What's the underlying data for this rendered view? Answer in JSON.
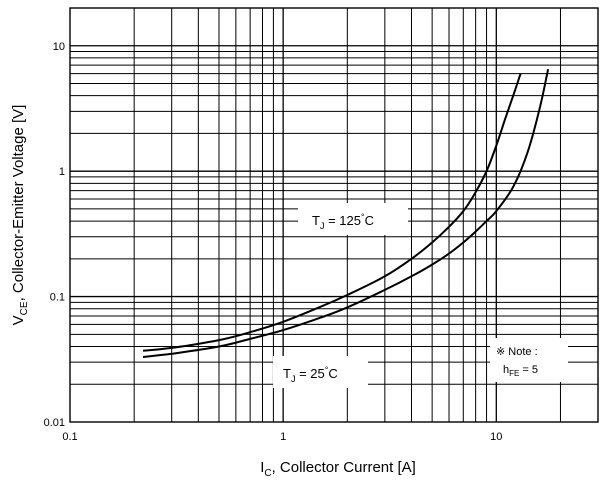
{
  "chart_data": {
    "type": "line",
    "x_scale": "log",
    "y_scale": "log",
    "xlim": [
      0.1,
      30
    ],
    "ylim": [
      0.01,
      20
    ],
    "grid": true,
    "x_ticks": [
      "0.1",
      "1",
      "10"
    ],
    "y_ticks": [
      "0.01",
      "0.1",
      "1",
      "10"
    ],
    "xlabel": {
      "main": "I",
      "sub": "C",
      "rest": ", Collector Current [A]"
    },
    "ylabel": {
      "main": "V",
      "sub": "CE",
      "rest": ", Collector-Emitter Voltage [V]"
    },
    "series": [
      {
        "name": "T_J = 125°C",
        "x": [
          0.22,
          0.3,
          0.5,
          0.7,
          1,
          1.5,
          2,
          3,
          4,
          5,
          6,
          7,
          8,
          9,
          10,
          11,
          12,
          13
        ],
        "y": [
          0.037,
          0.039,
          0.045,
          0.052,
          0.063,
          0.083,
          0.103,
          0.145,
          0.2,
          0.27,
          0.36,
          0.48,
          0.68,
          1.0,
          1.6,
          2.6,
          4.0,
          6.0
        ]
      },
      {
        "name": "T_J = 25°C",
        "x": [
          0.22,
          0.3,
          0.5,
          0.7,
          1,
          1.5,
          2,
          3,
          4,
          5,
          6,
          7,
          8,
          9,
          10,
          12,
          14,
          16,
          17.5
        ],
        "y": [
          0.033,
          0.035,
          0.04,
          0.046,
          0.054,
          0.068,
          0.082,
          0.113,
          0.145,
          0.18,
          0.22,
          0.27,
          0.33,
          0.4,
          0.48,
          0.75,
          1.4,
          3.2,
          6.5
        ]
      }
    ],
    "annotations": {
      "t125": {
        "t": "T",
        "sub": "J",
        "val": " = 125",
        "deg": "°",
        "unit": "C"
      },
      "t25": {
        "t": "T",
        "sub": "J",
        "val": " = 25",
        "deg": "°",
        "unit": "C"
      },
      "note": {
        "line1": "※ Note :",
        "h": "h",
        "sub": "FE",
        "val": " = 5"
      }
    }
  }
}
